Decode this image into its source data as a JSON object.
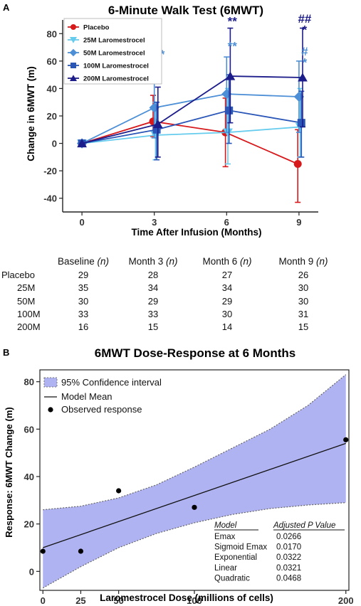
{
  "panels": {
    "a_letter": "A",
    "b_letter": "B"
  },
  "chart_data": [
    {
      "type": "line",
      "title": "6-Minute Walk Test (6MWT)",
      "xlabel": "Time After Infusion (Months)",
      "ylabel": "Change in 6MWT (m)",
      "x_ticks": [
        0,
        3,
        6,
        9
      ],
      "y_ticks": [
        -40,
        -20,
        0,
        20,
        40,
        60,
        80
      ],
      "ylim": [
        -50,
        90
      ],
      "grid": false,
      "legend_position": "top-left",
      "series": [
        {
          "name": "Placebo",
          "color": "#d7191c",
          "marker": "circle",
          "x": [
            0,
            3,
            6,
            9
          ],
          "values": [
            0,
            16,
            8,
            -15
          ],
          "err_low": [
            0,
            5,
            -17,
            -43
          ],
          "err_high": [
            0,
            35,
            33,
            10
          ]
        },
        {
          "name": "25M Laromestrocel",
          "color": "#66ccee",
          "marker": "triangle-down",
          "x": [
            0,
            3,
            6,
            9
          ],
          "values": [
            0,
            6,
            8,
            12
          ],
          "err_low": [
            0,
            -12,
            -15,
            -10
          ],
          "err_high": [
            0,
            30,
            40,
            40
          ]
        },
        {
          "name": "50M Laromestrocel",
          "color": "#4d8fd6",
          "marker": "diamond",
          "x": [
            0,
            3,
            6,
            9
          ],
          "values": [
            0,
            26,
            36,
            34
          ],
          "err_low": [
            0,
            4,
            8,
            8
          ],
          "err_high": [
            0,
            45,
            63,
            60
          ]
        },
        {
          "name": "100M Laromestrocel",
          "color": "#2a56b8",
          "marker": "square",
          "x": [
            0,
            3,
            6,
            9
          ],
          "values": [
            0,
            10,
            24,
            15
          ],
          "err_low": [
            0,
            -12,
            0,
            -10
          ],
          "err_high": [
            0,
            30,
            50,
            38
          ]
        },
        {
          "name": "200M Laromestrocel",
          "color": "#1c1c8a",
          "marker": "triangle-up",
          "x": [
            0,
            3,
            6,
            9
          ],
          "values": [
            0,
            14,
            49,
            48
          ],
          "err_low": [
            0,
            -10,
            15,
            12
          ],
          "err_high": [
            0,
            41,
            84,
            84
          ]
        }
      ],
      "annotations": [
        {
          "x": 3,
          "y": 62,
          "text": "**",
          "color": "#4d8fd6"
        },
        {
          "x": 6,
          "y": 86,
          "text": "**",
          "color": "#1c1c8a"
        },
        {
          "x": 6,
          "y": 68,
          "text": "**",
          "color": "#4d8fd6"
        },
        {
          "x": 9,
          "y": 88,
          "text": "##",
          "color": "#1c1c8a"
        },
        {
          "x": 9,
          "y": 80,
          "text": "*",
          "color": "#1c1c8a"
        },
        {
          "x": 9,
          "y": 64,
          "text": "#",
          "color": "#4d8fd6"
        },
        {
          "x": 9,
          "y": 56,
          "text": "*",
          "color": "#4d8fd6"
        }
      ]
    },
    {
      "type": "table",
      "columns": [
        {
          "label": "Baseline",
          "suffix": "(n)"
        },
        {
          "label": "Month 3",
          "suffix": "(n)"
        },
        {
          "label": "Month 6",
          "suffix": "(n)"
        },
        {
          "label": "Month 9",
          "suffix": "(n)"
        }
      ],
      "rows": [
        {
          "label": "Placebo",
          "values": [
            "29",
            "28",
            "27",
            "26"
          ]
        },
        {
          "label": "25M",
          "values": [
            "35",
            "34",
            "34",
            "30"
          ]
        },
        {
          "label": "50M",
          "values": [
            "30",
            "29",
            "29",
            "30"
          ]
        },
        {
          "label": "100M",
          "values": [
            "33",
            "33",
            "30",
            "31"
          ]
        },
        {
          "label": "200M",
          "values": [
            "16",
            "15",
            "14",
            "15"
          ]
        }
      ]
    },
    {
      "type": "scatter",
      "title": "6MWT Dose-Response at 6 Months",
      "xlabel": "Laromestrocel Dose (millions of cells)",
      "ylabel": "Response: 6MWT Change (m)",
      "x_ticks": [
        0,
        25,
        50,
        100,
        200
      ],
      "y_ticks": [
        0,
        20,
        40,
        60,
        80
      ],
      "xlim": [
        -2,
        202
      ],
      "ylim": [
        -8,
        85
      ],
      "grid": false,
      "legend_position": "top-left",
      "legend": [
        "95% Confidence interval",
        "Model Mean",
        "Observed response"
      ],
      "ci_color": "#b0b3f2",
      "observed": [
        {
          "x": 0,
          "y": 8.5
        },
        {
          "x": 25,
          "y": 8.5
        },
        {
          "x": 50,
          "y": 34
        },
        {
          "x": 100,
          "y": 27
        },
        {
          "x": 200,
          "y": 55.5
        }
      ],
      "model_mean": [
        {
          "x": 0,
          "y": 10
        },
        {
          "x": 200,
          "y": 54
        }
      ],
      "ci_upper": [
        {
          "x": 0,
          "y": 26
        },
        {
          "x": 25,
          "y": 27.5
        },
        {
          "x": 50,
          "y": 31
        },
        {
          "x": 75,
          "y": 36.5
        },
        {
          "x": 100,
          "y": 44
        },
        {
          "x": 125,
          "y": 52
        },
        {
          "x": 150,
          "y": 60
        },
        {
          "x": 175,
          "y": 70
        },
        {
          "x": 200,
          "y": 83
        }
      ],
      "ci_lower": [
        {
          "x": 0,
          "y": -7
        },
        {
          "x": 25,
          "y": 2
        },
        {
          "x": 50,
          "y": 10
        },
        {
          "x": 75,
          "y": 16
        },
        {
          "x": 100,
          "y": 20.5
        },
        {
          "x": 125,
          "y": 24
        },
        {
          "x": 150,
          "y": 26.5
        },
        {
          "x": 175,
          "y": 28
        },
        {
          "x": 200,
          "y": 29
        }
      ],
      "model_table": {
        "headers": [
          "Model",
          "Adjusted P Value"
        ],
        "rows": [
          [
            "Emax",
            "0.0266"
          ],
          [
            "Sigmoid Emax",
            "0.0170"
          ],
          [
            "Exponential",
            "0.0322"
          ],
          [
            "Linear",
            "0.0321"
          ],
          [
            "Quadratic",
            "0.0468"
          ]
        ]
      }
    }
  ]
}
